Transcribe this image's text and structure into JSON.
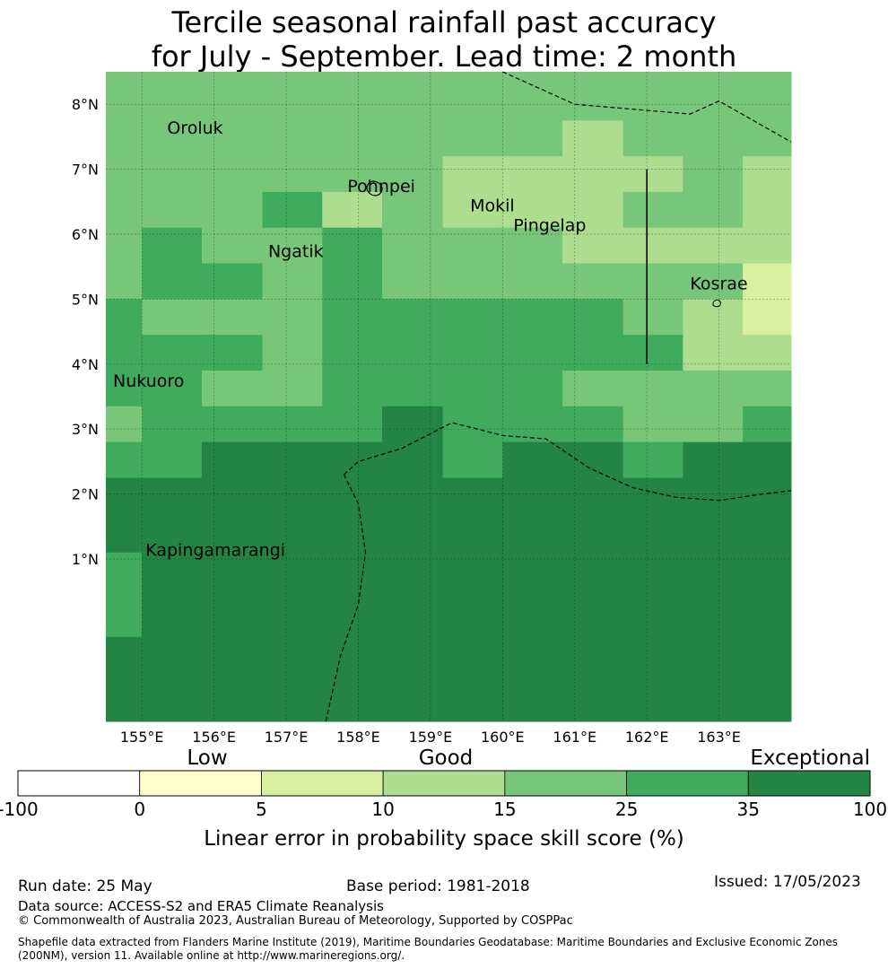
{
  "title_line1": "Tercile seasonal rainfall past accuracy",
  "title_line2": "for July - September. Lead time: 2 month",
  "map": {
    "lon_range": [
      154.5,
      164.0
    ],
    "lat_range": [
      -1.5,
      8.5
    ],
    "lon_ticks": [
      155,
      156,
      157,
      158,
      159,
      160,
      161,
      162,
      163
    ],
    "lon_tick_labels": [
      "155°E",
      "156°E",
      "157°E",
      "158°E",
      "159°E",
      "160°E",
      "161°E",
      "162°E",
      "163°E"
    ],
    "lat_ticks": [
      1,
      2,
      3,
      4,
      5,
      6,
      7,
      8
    ],
    "lat_tick_labels": [
      "1°N",
      "2°N",
      "3°N",
      "4°N",
      "5°N",
      "6°N",
      "7°N",
      "8°N"
    ],
    "grid": true,
    "places": [
      {
        "name": "Oroluk",
        "lon": 155.35,
        "lat": 7.55
      },
      {
        "name": "Pohnpei",
        "lon": 157.85,
        "lat": 6.65
      },
      {
        "name": "Mokil",
        "lon": 159.55,
        "lat": 6.35
      },
      {
        "name": "Pingelap",
        "lon": 160.15,
        "lat": 6.05
      },
      {
        "name": "Ngatik",
        "lon": 156.75,
        "lat": 5.65
      },
      {
        "name": "Kosrae",
        "lon": 162.6,
        "lat": 5.15
      },
      {
        "name": "Nukuoro",
        "lon": 154.6,
        "lat": 3.65
      },
      {
        "name": "Kapingamarangi",
        "lon": 155.05,
        "lat": 1.05
      }
    ],
    "skill_cells": {
      "lon_edges": [
        154.5,
        155.0,
        155.83,
        156.67,
        157.5,
        158.33,
        159.17,
        160.0,
        160.83,
        161.67,
        162.5,
        163.33,
        164.0
      ],
      "lat_edges_top_down": [
        8.5,
        7.75,
        7.2,
        6.65,
        6.1,
        5.55,
        5.0,
        4.45,
        3.9,
        3.35,
        2.8,
        2.25,
        1.7,
        1.1,
        0.4,
        -0.2,
        -1.5
      ],
      "rows_categories": [
        [
          4,
          4,
          4,
          4,
          4,
          4,
          4,
          4,
          4,
          4,
          4,
          4
        ],
        [
          4,
          4,
          4,
          4,
          4,
          4,
          4,
          4,
          3,
          4,
          4,
          4
        ],
        [
          4,
          4,
          4,
          4,
          4,
          4,
          3,
          3,
          3,
          3,
          4,
          3
        ],
        [
          4,
          4,
          4,
          5,
          3,
          4,
          3,
          3,
          3,
          4,
          4,
          3
        ],
        [
          4,
          5,
          4,
          4,
          5,
          4,
          4,
          4,
          3,
          3,
          3,
          3
        ],
        [
          4,
          5,
          5,
          4,
          5,
          4,
          4,
          4,
          4,
          4,
          4,
          2
        ],
        [
          5,
          4,
          4,
          4,
          5,
          5,
          5,
          5,
          5,
          4,
          3,
          2
        ],
        [
          5,
          5,
          5,
          4,
          5,
          5,
          5,
          5,
          5,
          5,
          3,
          3
        ],
        [
          5,
          5,
          4,
          4,
          5,
          5,
          5,
          5,
          4,
          4,
          4,
          4
        ],
        [
          4,
          5,
          5,
          5,
          5,
          6,
          5,
          5,
          5,
          4,
          4,
          5
        ],
        [
          5,
          5,
          6,
          6,
          6,
          6,
          5,
          6,
          6,
          5,
          6,
          6
        ],
        [
          6,
          6,
          6,
          6,
          6,
          6,
          6,
          6,
          6,
          6,
          6,
          6
        ],
        [
          6,
          6,
          6,
          6,
          6,
          6,
          6,
          6,
          6,
          6,
          6,
          6
        ],
        [
          5,
          6,
          6,
          6,
          6,
          6,
          6,
          6,
          6,
          6,
          6,
          6
        ],
        [
          5,
          6,
          6,
          6,
          6,
          6,
          6,
          6,
          6,
          6,
          6,
          6
        ],
        [
          6,
          6,
          6,
          6,
          6,
          6,
          6,
          6,
          6,
          6,
          6,
          6
        ]
      ]
    },
    "boundaries": [
      {
        "style": "dashed",
        "points": [
          [
            160.0,
            8.5
          ],
          [
            161.0,
            8.0
          ],
          [
            162.6,
            7.85
          ],
          [
            163.0,
            8.05
          ],
          [
            164.0,
            7.42
          ]
        ]
      },
      {
        "style": "dashed",
        "points": [
          [
            157.8,
            2.3
          ],
          [
            158.0,
            2.5
          ],
          [
            158.6,
            2.7
          ],
          [
            159.3,
            3.1
          ],
          [
            160.0,
            2.9
          ],
          [
            160.6,
            2.85
          ],
          [
            161.2,
            2.4
          ],
          [
            161.8,
            2.1
          ],
          [
            162.4,
            1.95
          ],
          [
            163.0,
            1.9
          ],
          [
            163.6,
            2.0
          ],
          [
            164.0,
            2.05
          ]
        ]
      },
      {
        "style": "dashed",
        "points": [
          [
            157.8,
            2.3
          ],
          [
            158.0,
            1.85
          ],
          [
            158.1,
            1.1
          ],
          [
            158.0,
            0.3
          ],
          [
            157.75,
            -0.5
          ],
          [
            157.55,
            -1.5
          ]
        ]
      },
      {
        "style": "solid",
        "points": [
          [
            162.0,
            7.0
          ],
          [
            162.0,
            4.0
          ]
        ]
      }
    ]
  },
  "colorbar": {
    "bounds": [
      -100,
      0,
      5,
      10,
      15,
      25,
      35,
      100
    ],
    "tick_labels": [
      "-100",
      "0",
      "5",
      "10",
      "15",
      "25",
      "35",
      "100"
    ],
    "colors": [
      "#ffffff",
      "#ffffcc",
      "#d9f0a3",
      "#addd8e",
      "#78c679",
      "#41ab5d",
      "#238443"
    ],
    "category_labels": [
      "Low",
      "Good",
      "Exceptional"
    ],
    "label": "Linear error in probability space skill score (%)"
  },
  "footer": {
    "run_date": "Run date: 25 May",
    "base_period": "Base period: 1981-2018",
    "issued": "Issued: 17/05/2023",
    "data_source": "Data source: ACCESS-S2 and ERA5 Climate Reanalysis",
    "copyright": "© Commonwealth of Australia 2023, Australian Bureau of Meteorology, Supported by COSPPac",
    "shapefile_note": "Shapefile data extracted from Flanders Marine Institute (2019), Maritime Boundaries Geodatabase: Maritime Boundaries and Exclusive Economic Zones (200NM), version 11. Available online at http://www.marineregions.org/."
  }
}
